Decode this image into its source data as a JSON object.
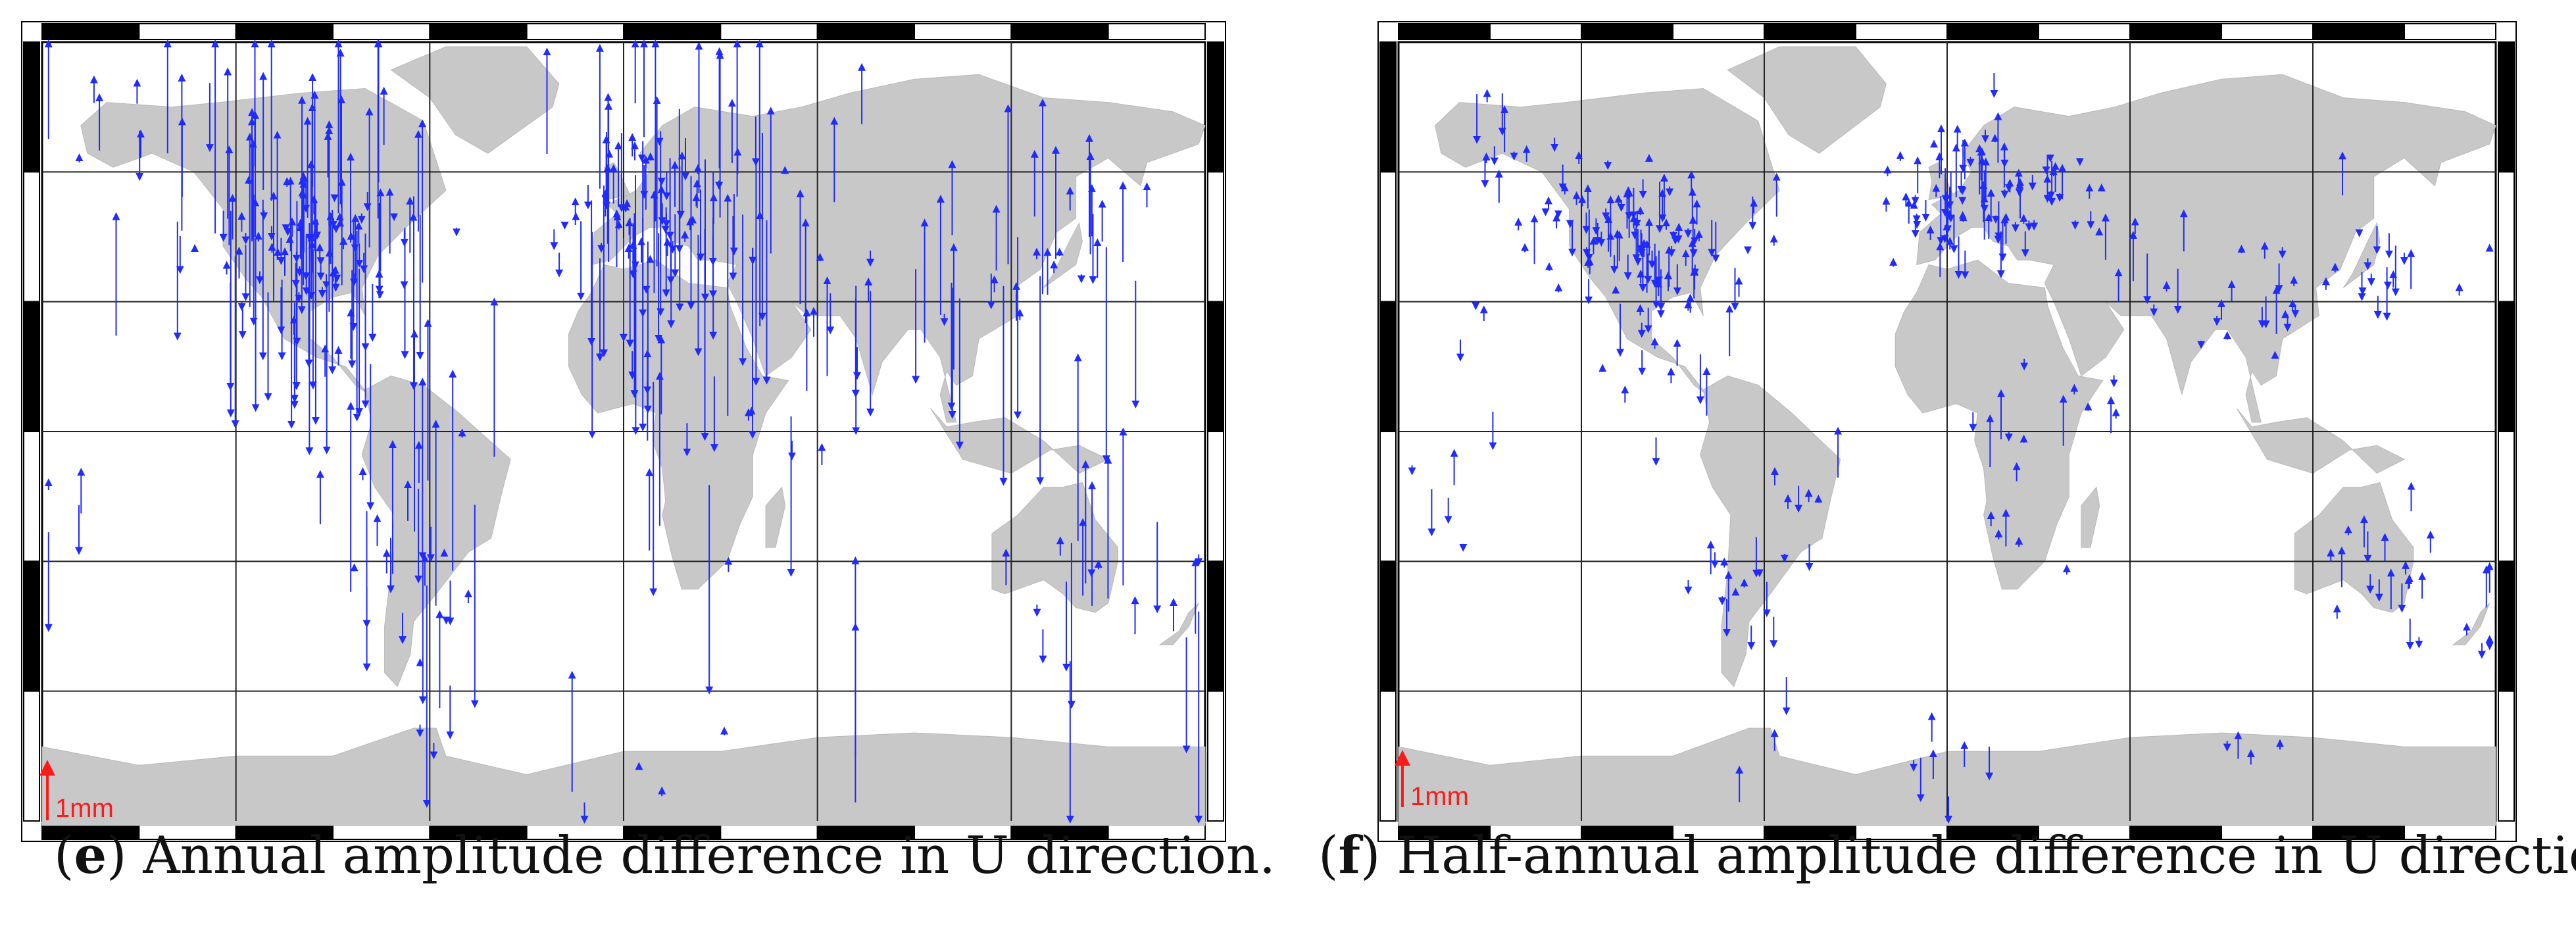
{
  "panels": [
    {
      "id": "e",
      "letter": "e",
      "caption": "Annual amplitude difference in U direction.",
      "scale_label": "1mm",
      "seed": 7,
      "vectors": 420,
      "max_len": 330
    },
    {
      "id": "f",
      "letter": "f",
      "caption": "Half-annual amplitude difference in U direction.",
      "scale_label": "1mm",
      "seed": 19,
      "vectors": 360,
      "max_len": 70
    }
  ],
  "colors": {
    "land": "#c8c8c8",
    "vector": "#1f2bff",
    "scale": "#ff1a1a",
    "grid": "#000000",
    "frame_dark": "#000000",
    "frame_light": "#ffffff"
  },
  "icons": {
    "scale-arrow": "up-arrow"
  }
}
